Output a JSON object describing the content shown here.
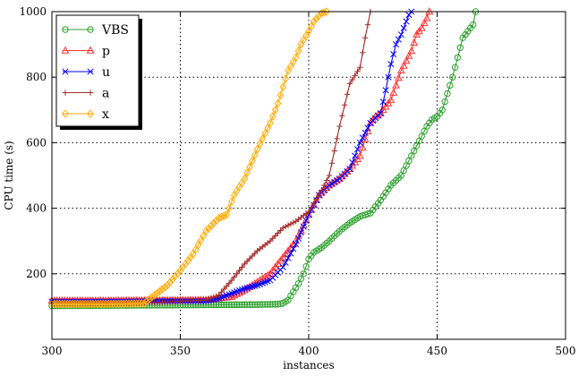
{
  "chart_data": {
    "type": "line",
    "title": "",
    "xlabel": "instances",
    "ylabel": "CPU time (s)",
    "xlim": [
      300,
      500
    ],
    "ylim": [
      0,
      1000
    ],
    "xticks": [
      300,
      350,
      400,
      450,
      500
    ],
    "yticks": [
      200,
      400,
      600,
      800,
      1000
    ],
    "grid": true,
    "legend_position": "top-left",
    "series": [
      {
        "name": "VBS",
        "color": "#2ca02c",
        "marker": "circle",
        "x": [
          300,
          320,
          340,
          360,
          380,
          388,
          390,
          392,
          394,
          396,
          398,
          400,
          402,
          405,
          408,
          412,
          416,
          420,
          424,
          428,
          432,
          436,
          440,
          444,
          446,
          448,
          450,
          452,
          454,
          456,
          458,
          460,
          462,
          463,
          464,
          465
        ],
        "y": [
          102,
          103,
          104,
          105,
          106,
          107,
          110,
          120,
          145,
          170,
          200,
          245,
          265,
          280,
          300,
          330,
          355,
          375,
          385,
          425,
          470,
          500,
          560,
          620,
          650,
          670,
          680,
          700,
          750,
          800,
          860,
          920,
          940,
          950,
          960,
          1000
        ]
      },
      {
        "name": "p",
        "color": "#ff3333",
        "marker": "triangle",
        "x": [
          300,
          320,
          340,
          360,
          370,
          375,
          380,
          385,
          390,
          395,
          400,
          404,
          408,
          412,
          416,
          420,
          424,
          426,
          428,
          432,
          436,
          440,
          442,
          444,
          446,
          447
        ],
        "y": [
          118,
          118,
          119,
          120,
          130,
          150,
          175,
          200,
          250,
          300,
          380,
          440,
          470,
          490,
          520,
          560,
          660,
          680,
          690,
          730,
          820,
          880,
          930,
          950,
          980,
          1000
        ]
      },
      {
        "name": "u",
        "color": "#0000ff",
        "marker": "x",
        "x": [
          300,
          320,
          340,
          360,
          365,
          370,
          375,
          380,
          385,
          390,
          395,
          400,
          404,
          408,
          412,
          416,
          420,
          424,
          428,
          430,
          432,
          434,
          436,
          438,
          439,
          440
        ],
        "y": [
          115,
          115,
          116,
          117,
          125,
          140,
          155,
          165,
          180,
          220,
          290,
          380,
          440,
          470,
          490,
          520,
          600,
          660,
          690,
          760,
          840,
          900,
          930,
          970,
          990,
          1000
        ]
      },
      {
        "name": "a",
        "color": "#a52a2a",
        "marker": "plus",
        "x": [
          300,
          320,
          340,
          360,
          365,
          370,
          375,
          380,
          385,
          390,
          395,
          400,
          404,
          408,
          412,
          416,
          420,
          422,
          424
        ],
        "y": [
          110,
          110,
          112,
          120,
          135,
          180,
          230,
          270,
          300,
          340,
          360,
          390,
          440,
          500,
          650,
          780,
          830,
          920,
          1000
        ]
      },
      {
        "name": "x",
        "color": "#ffaa00",
        "marker": "diamond",
        "x": [
          300,
          320,
          330,
          336,
          340,
          345,
          350,
          355,
          360,
          365,
          368,
          371,
          375,
          380,
          385,
          388,
          390,
          392,
          395,
          397,
          400,
          402,
          405,
          407
        ],
        "y": [
          108,
          108,
          109,
          110,
          135,
          165,
          210,
          260,
          330,
          370,
          380,
          440,
          490,
          580,
          660,
          720,
          770,
          820,
          860,
          900,
          940,
          970,
          995,
          1000
        ]
      }
    ]
  }
}
